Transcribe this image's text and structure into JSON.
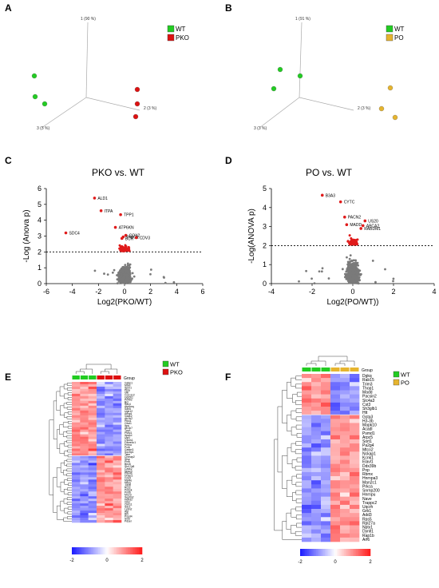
{
  "chart_data": [
    {
      "panel_letter": "A",
      "type": "scatter",
      "axes3d": [
        "1 (90 %)",
        "2 (3 %)",
        "3 (3 %)"
      ],
      "legend": [
        {
          "name": "WT",
          "color": "#22cc22"
        },
        {
          "name": "PKO",
          "color": "#dd1111"
        }
      ]
    },
    {
      "panel_letter": "B",
      "type": "scatter",
      "axes3d": [
        "1 (91 %)",
        "2 (3 %)",
        "3 (3 %)"
      ],
      "legend": [
        {
          "name": "WT",
          "color": "#22cc22"
        },
        {
          "name": "PO",
          "color": "#e6b42e"
        }
      ]
    },
    {
      "panel_letter": "C",
      "type": "scatter",
      "title": "PKO vs. WT",
      "xlabel": "Log2(PKO/WT)",
      "ylabel": "-Log (Anova p)",
      "xlim": [
        -6,
        6
      ],
      "ylim": [
        0,
        6
      ],
      "xticks": [
        -6,
        -4,
        -2,
        0,
        2,
        4,
        6
      ],
      "yticks": [
        0,
        1,
        2,
        3,
        4,
        5,
        6
      ],
      "threshold_y": 2,
      "labeled_points": [
        {
          "label": "ALD1",
          "x": -2.3,
          "y": 5.4
        },
        {
          "label": "ITPA",
          "x": -1.8,
          "y": 4.6
        },
        {
          "label": "TPP1",
          "x": -0.3,
          "y": 4.35
        },
        {
          "label": "SDC4",
          "x": -4.5,
          "y": 3.2
        },
        {
          "label": "ATP6KN",
          "x": -0.7,
          "y": 3.55
        },
        {
          "label": "COX2",
          "x": 0.1,
          "y": 3.05
        },
        {
          "label": "PIMO1",
          "x": -0.1,
          "y": 2.95
        },
        {
          "label": "BCR",
          "x": -0.2,
          "y": 2.85
        },
        {
          "label": "CDV3",
          "x": 0.9,
          "y": 2.9
        }
      ]
    },
    {
      "panel_letter": "D",
      "type": "scatter",
      "title": "PO vs. WT",
      "xlabel": "Log2(PO/WT))",
      "ylabel": "-Log(ANOVA p)",
      "xlim": [
        -4,
        4
      ],
      "ylim": [
        0,
        5
      ],
      "xticks": [
        -4,
        -2,
        0,
        2,
        4
      ],
      "yticks": [
        0,
        1,
        2,
        3,
        4,
        5
      ],
      "threshold_y": 2,
      "labeled_points": [
        {
          "label": "B3A3",
          "x": -1.5,
          "y": 4.65
        },
        {
          "label": "CYTC",
          "x": -0.6,
          "y": 4.3
        },
        {
          "label": "PACN2",
          "x": -0.4,
          "y": 3.5
        },
        {
          "label": "US20",
          "x": 0.6,
          "y": 3.3
        },
        {
          "label": "MADD",
          "x": -0.3,
          "y": 3.1
        },
        {
          "label": "ABCA2",
          "x": 0.5,
          "y": 3.05
        },
        {
          "label": "RABDM1",
          "x": 0.4,
          "y": 2.9
        }
      ]
    },
    {
      "panel_letter": "E",
      "type": "heatmap",
      "group_label": "Group",
      "legend": [
        {
          "name": "WT",
          "color": "#22cc22"
        },
        {
          "name": "PKO",
          "color": "#dd1111"
        }
      ],
      "groups": [
        "WT",
        "WT",
        "WT",
        "PKO",
        "PKO",
        "PKO"
      ],
      "colorbar": {
        "min": -2,
        "mid": 0,
        "max": 2
      },
      "genes": [
        "Gabp1",
        "Mbel",
        "Spnr1",
        "Ppia",
        "Gltr",
        "Coro1c2",
        "Ugt2b1",
        "Pc4tr2",
        "Bcl",
        "Sdc4",
        "Atp6mq",
        "Sdh5",
        "Ugtr12",
        "Arhgd",
        "Vdac2",
        "Atr1b2",
        "Ptko1",
        "Cfsd1",
        "Itpa",
        "Atr1b7",
        "Tpp1",
        "Psbc1",
        "Itpa1d",
        "Ugt1",
        "Cyurs1",
        "Fame4c1",
        "Pnfna",
        "Pcrb",
        "Gabbr3",
        "Soc5p1",
        "Tstm",
        "Chmap2",
        "Sfsp",
        "Plnb",
        "Bnc6",
        "Slc17a8",
        "Cask2",
        "Npsv3",
        "Pde4b",
        "Dnajc1",
        "Cdv3",
        "Myt4e",
        "Nfsig",
        "Jdl1b",
        "Rcss",
        "Pnbsk",
        "Pnit6",
        "Mrcr3",
        "Septin2",
        "Hdhd2",
        "Gbcr",
        "Ckh11",
        "Sdc1",
        "Lphn2",
        "Agt",
        "Bcr",
        "Pspd4",
        "Svt3",
        "Pdsel"
      ]
    },
    {
      "panel_letter": "F",
      "type": "heatmap",
      "group_label": "Group",
      "legend": [
        {
          "name": "WT",
          "color": "#22cc22"
        },
        {
          "name": "PO",
          "color": "#e6b42e"
        }
      ],
      "groups": [
        "WT",
        "WT",
        "WT",
        "PO",
        "PO",
        "PO"
      ],
      "colorbar": {
        "min": -2,
        "mid": 0,
        "max": 2
      },
      "genes": [
        "Dgkq",
        "Rab15",
        "Trim3",
        "Thop1",
        "Madd",
        "Pacsin2",
        "Slc4a3",
        "Cst3",
        "Sh3glb1",
        "Htt",
        "Gsta3",
        "H3-3b",
        "Mapk10",
        "Acadl",
        "Psmd1",
        "Arpc5",
        "Sort1",
        "Pa2g4",
        "Mtco2",
        "Nckap1",
        "Kcnk1",
        "Elavl1",
        "Ddx39b",
        "Pnp",
        "Rbmx",
        "Hnrnpa3",
        "Man2c1",
        "Prkca",
        "Snrnp200",
        "Hnrnpu",
        "Nave",
        "Trappc2",
        "Uqcrh",
        "Grb1",
        "Add3",
        "Rps5",
        "Rpl27a",
        "Nptx1",
        "Dynll1",
        "Rap1b",
        "Arf6"
      ]
    }
  ]
}
